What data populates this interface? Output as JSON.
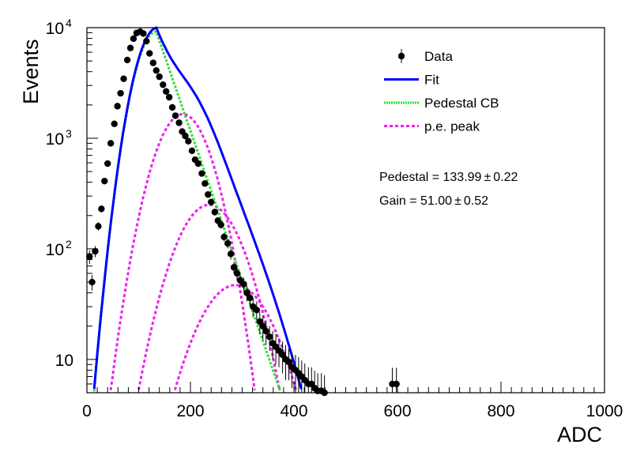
{
  "chart_data": {
    "type": "scatter",
    "title": "",
    "xlabel": "ADC",
    "ylabel": "Events",
    "x_range": [
      0,
      1000
    ],
    "y_range": [
      5,
      10000
    ],
    "y_scale": "log",
    "x_tick_labels": [
      "0",
      "200",
      "400",
      "600",
      "800",
      "1000"
    ],
    "y_tick_labels": [
      {
        "base": "10",
        "exp": "4",
        "value": 10000
      },
      {
        "base": "10",
        "exp": "3",
        "value": 1000
      },
      {
        "base": "10",
        "exp": "2",
        "value": 100
      },
      {
        "base": "10",
        "exp": "",
        "value": 10
      }
    ],
    "grid": false,
    "legend_position": "top-right",
    "legend": [
      {
        "label": "Data",
        "style": "marker",
        "color": "#000000"
      },
      {
        "label": "Fit",
        "style": "solid",
        "color": "#0000ff"
      },
      {
        "label": "Pedestal CB",
        "style": "dotted",
        "color": "#33dd33"
      },
      {
        "label": "p.e. peak",
        "style": "dashed",
        "color": "#ee22ee"
      }
    ],
    "annotations": {
      "pedestal": "Pedestal = 133.99",
      "pedestal_err": "0.22",
      "gain": "Gain = 51.00",
      "gain_err": "0.52",
      "pm": "±"
    },
    "series": [
      {
        "name": "Data",
        "kind": "points_with_errors",
        "color": "#000000",
        "points": [
          [
            5,
            85,
            12
          ],
          [
            10,
            50,
            8
          ],
          [
            16,
            95,
            11
          ],
          [
            22,
            160,
            14
          ],
          [
            28,
            230,
            17
          ],
          [
            34,
            410,
            22
          ],
          [
            40,
            590,
            26
          ],
          [
            46,
            900,
            32
          ],
          [
            53,
            1350,
            38
          ],
          [
            59,
            1950,
            46
          ],
          [
            65,
            2550,
            52
          ],
          [
            71,
            3450,
            60
          ],
          [
            78,
            5100,
            72
          ],
          [
            84,
            6550,
            82
          ],
          [
            90,
            7950,
            90
          ],
          [
            96,
            8950,
            95
          ],
          [
            103,
            9200,
            96
          ],
          [
            109,
            8850,
            94
          ],
          [
            115,
            7550,
            88
          ],
          [
            121,
            5850,
            77
          ],
          [
            128,
            4800,
            70
          ],
          [
            134,
            4100,
            65
          ],
          [
            140,
            3600,
            60
          ],
          [
            147,
            3050,
            55
          ],
          [
            153,
            2650,
            52
          ],
          [
            159,
            2350,
            49
          ],
          [
            165,
            1900,
            44
          ],
          [
            171,
            1600,
            40
          ],
          [
            178,
            1380,
            38
          ],
          [
            184,
            1150,
            34
          ],
          [
            190,
            1050,
            33
          ],
          [
            196,
            940,
            31
          ],
          [
            203,
            770,
            28
          ],
          [
            209,
            640,
            25
          ],
          [
            215,
            590,
            24
          ],
          [
            222,
            480,
            22
          ],
          [
            228,
            390,
            20
          ],
          [
            234,
            310,
            18
          ],
          [
            240,
            265,
            16
          ],
          [
            247,
            215,
            15
          ],
          [
            253,
            180,
            13
          ],
          [
            259,
            165,
            13
          ],
          [
            265,
            128,
            11
          ],
          [
            272,
            112,
            11
          ],
          [
            278,
            90,
            10
          ],
          [
            284,
            68,
            8
          ],
          [
            290,
            60,
            8
          ],
          [
            296,
            52,
            7
          ],
          [
            303,
            48,
            7
          ],
          [
            309,
            40,
            6.5
          ],
          [
            315,
            36,
            6
          ],
          [
            321,
            30,
            6
          ],
          [
            328,
            28,
            5.5
          ],
          [
            334,
            22,
            5
          ],
          [
            340,
            20,
            5
          ],
          [
            346,
            18,
            4.5
          ],
          [
            353,
            16,
            4
          ],
          [
            359,
            14,
            4
          ],
          [
            365,
            13,
            4
          ],
          [
            371,
            12,
            3.5
          ],
          [
            378,
            11,
            3.5
          ],
          [
            384,
            10,
            3.5
          ],
          [
            390,
            9.5,
            3
          ],
          [
            396,
            8.5,
            3
          ],
          [
            403,
            8,
            3
          ],
          [
            409,
            7.5,
            3
          ],
          [
            415,
            7,
            2.8
          ],
          [
            421,
            6.5,
            2.7
          ],
          [
            428,
            6,
            2.5
          ],
          [
            434,
            6,
            2.5
          ],
          [
            440,
            5.5,
            2.4
          ],
          [
            446,
            5.2,
            2.3
          ],
          [
            453,
            5.2,
            2.3
          ],
          [
            459,
            5,
            2.2
          ],
          [
            590,
            6,
            2.4
          ],
          [
            598,
            6,
            2.4
          ]
        ]
      }
    ],
    "model": {
      "pedestal_mean": 133.99,
      "gain": 51.0,
      "pedestal": {
        "peak": 9200,
        "sigma_left": 31,
        "slope_right": 32
      },
      "pe_peaks": [
        {
          "order": 1,
          "peak": 1650,
          "center": 185,
          "width": 41
        },
        {
          "order": 2,
          "peak": 250,
          "center": 236,
          "width": 49
        },
        {
          "order": 3,
          "peak": 47,
          "center": 287,
          "width": 56
        }
      ]
    }
  }
}
